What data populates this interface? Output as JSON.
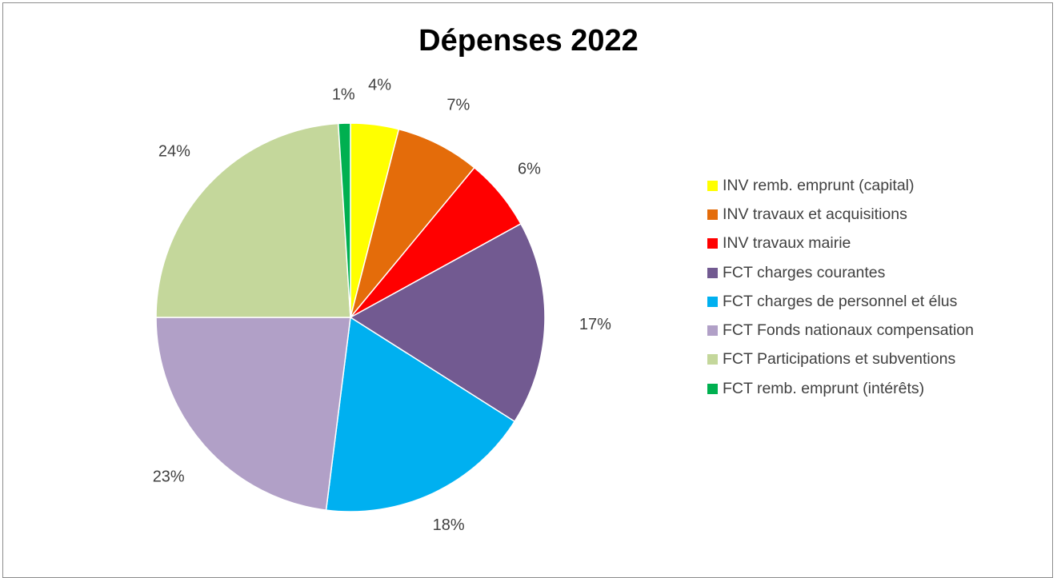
{
  "chart_data": {
    "type": "pie",
    "title": "Dépenses 2022",
    "slices": [
      {
        "name": "INV remb. emprunt (capital)",
        "value": 4,
        "label": "4%",
        "color": "#ffff00"
      },
      {
        "name": "INV travaux et acquisitions",
        "value": 7,
        "label": "7%",
        "color": "#e46c0a"
      },
      {
        "name": "INV travaux mairie",
        "value": 6,
        "label": "6%",
        "color": "#ff0000"
      },
      {
        "name": "FCT charges courantes",
        "value": 17,
        "label": "17%",
        "color": "#725a91"
      },
      {
        "name": "FCT charges de personnel et élus",
        "value": 18,
        "label": "18%",
        "color": "#00b0f0"
      },
      {
        "name": "FCT Fonds nationaux compensation",
        "value": 23,
        "label": "23%",
        "color": "#b1a0c7"
      },
      {
        "name": "FCT Participations  et subventions",
        "value": 24,
        "label": "24%",
        "color": "#c4d79b"
      },
      {
        "name": "FCT remb. emprunt (intérêts)",
        "value": 1,
        "label": "1%",
        "color": "#00b050"
      }
    ],
    "legend_position": "right"
  }
}
